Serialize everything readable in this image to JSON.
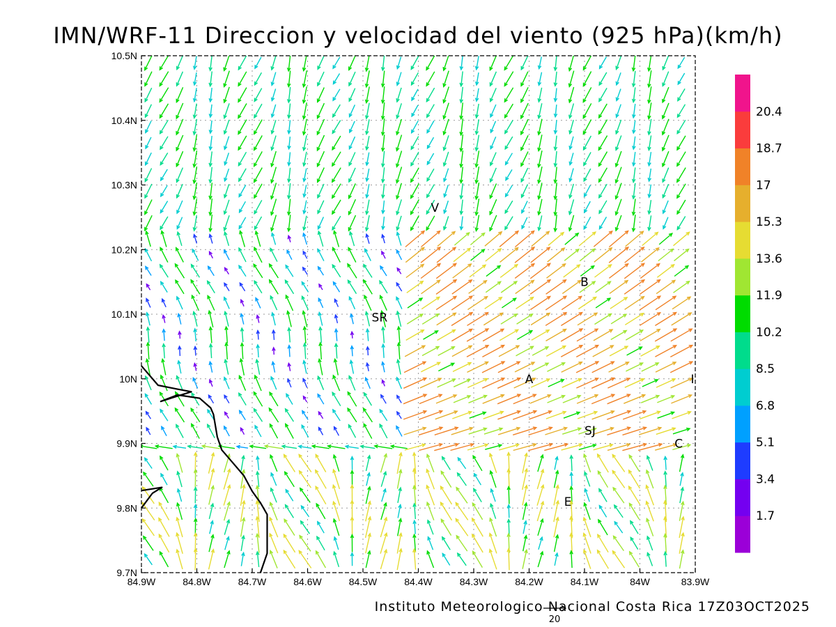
{
  "title": "IMN/WRF-11 Direccion y velocidad del viento (925 hPa)(km/h)",
  "footer": "Instituto Meteorologico Nacional Costa Rica 17Z03OCT2025",
  "reference_vector": {
    "value": 20,
    "label": "20"
  },
  "chart_data": {
    "type": "vector_field",
    "xlim": [
      -84.9,
      -83.9
    ],
    "ylim": [
      9.7,
      10.5
    ],
    "x_ticks": [
      {
        "value": -84.9,
        "label": "84.9W"
      },
      {
        "value": -84.8,
        "label": "84.8W"
      },
      {
        "value": -84.7,
        "label": "84.7W"
      },
      {
        "value": -84.6,
        "label": "84.6W"
      },
      {
        "value": -84.5,
        "label": "84.5W"
      },
      {
        "value": -84.4,
        "label": "84.4W"
      },
      {
        "value": -84.3,
        "label": "84.3W"
      },
      {
        "value": -84.2,
        "label": "84.2W"
      },
      {
        "value": -84.1,
        "label": "84.1W"
      },
      {
        "value": -84.0,
        "label": "84W"
      },
      {
        "value": -83.9,
        "label": "83.9W"
      }
    ],
    "y_ticks": [
      {
        "value": 9.7,
        "label": "9.7N"
      },
      {
        "value": 9.8,
        "label": "9.8N"
      },
      {
        "value": 9.9,
        "label": "9.9N"
      },
      {
        "value": 10.0,
        "label": "10N"
      },
      {
        "value": 10.1,
        "label": "10.1N"
      },
      {
        "value": 10.2,
        "label": "10.2N"
      },
      {
        "value": 10.3,
        "label": "10.3N"
      },
      {
        "value": 10.4,
        "label": "10.4N"
      },
      {
        "value": 10.5,
        "label": "10.5N"
      }
    ],
    "grid": true,
    "place_labels": [
      {
        "text": "V",
        "lon": -84.37,
        "lat": 10.265
      },
      {
        "text": "B",
        "lon": -84.1,
        "lat": 10.15
      },
      {
        "text": "SR",
        "lon": -84.47,
        "lat": 10.095
      },
      {
        "text": "A",
        "lon": -84.2,
        "lat": 10.0
      },
      {
        "text": "I",
        "lon": -83.905,
        "lat": 10.0
      },
      {
        "text": "SJ",
        "lon": -84.09,
        "lat": 9.92
      },
      {
        "text": "C",
        "lon": -83.93,
        "lat": 9.9
      },
      {
        "text": "E",
        "lon": -84.13,
        "lat": 9.81
      }
    ],
    "coastline": [
      [
        -84.9,
        10.02
      ],
      [
        -84.87,
        9.99
      ],
      [
        -84.835,
        9.984
      ],
      [
        -84.81,
        9.98
      ],
      [
        -84.865,
        9.965
      ],
      [
        -84.835,
        9.975
      ],
      [
        -84.795,
        9.97
      ],
      [
        -84.775,
        9.955
      ],
      [
        -84.77,
        9.945
      ],
      [
        -84.763,
        9.91
      ],
      [
        -84.755,
        9.89
      ],
      [
        -84.735,
        9.87
      ],
      [
        -84.715,
        9.85
      ],
      [
        -84.7,
        9.826
      ],
      [
        -84.685,
        9.808
      ],
      [
        -84.673,
        9.79
      ],
      [
        -84.673,
        9.73
      ],
      [
        -84.685,
        9.7
      ]
    ],
    "coastline_2": [
      [
        -84.9,
        9.8
      ],
      [
        -84.88,
        9.823
      ],
      [
        -84.863,
        9.832
      ],
      [
        -84.9,
        9.827
      ]
    ],
    "colorbar": {
      "levels": [
        "1.7",
        "3.4",
        "5.1",
        "6.8",
        "8.5",
        "10.2",
        "11.9",
        "13.6",
        "15.3",
        "17",
        "18.7",
        "20.4"
      ],
      "colors": [
        "#9b00d8",
        "#7400f0",
        "#1e3cff",
        "#00a0ff",
        "#00cdd0",
        "#00dc8c",
        "#00dc00",
        "#a0e632",
        "#e6dc32",
        "#e6af2d",
        "#f08228",
        "#fa3c3c",
        "#f0148c"
      ]
    }
  }
}
